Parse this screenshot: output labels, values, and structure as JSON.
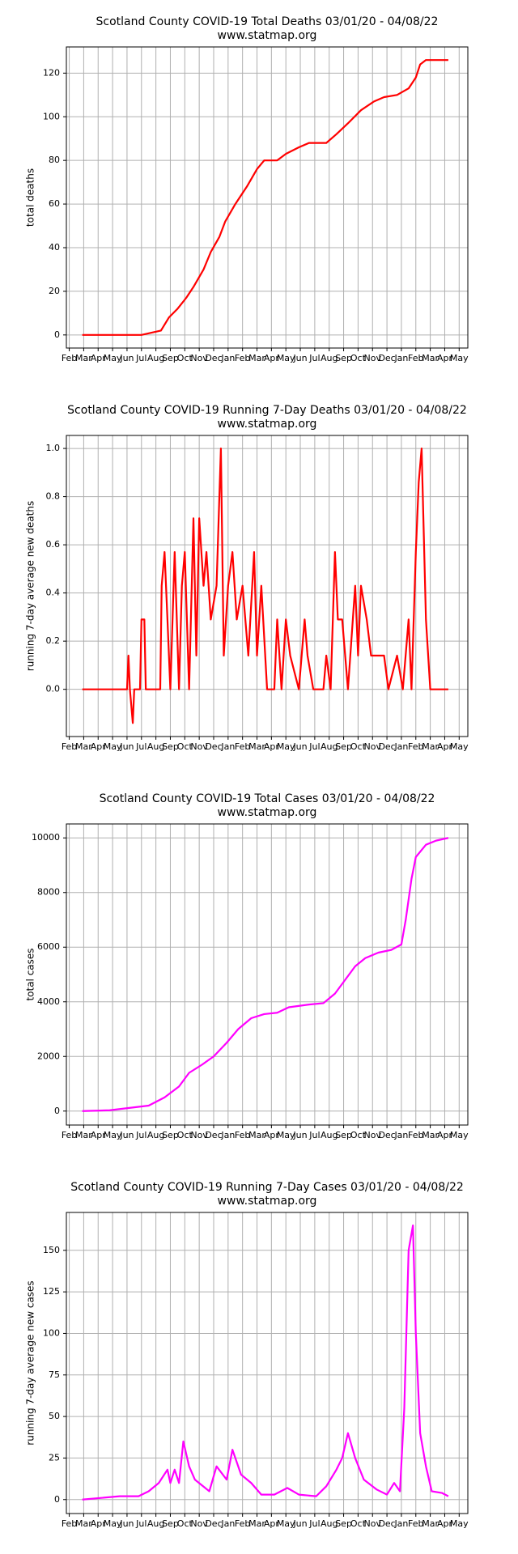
{
  "chart_data": [
    {
      "type": "line",
      "title": "Scotland County COVID-19 Total Deaths 03/01/20 - 04/08/22",
      "subtitle": "www.statmap.org",
      "y_label": "total deaths",
      "grid": true,
      "xlim": [
        -0.2,
        27.6
      ],
      "ylim": [
        -6,
        132
      ],
      "yticks": [
        0,
        20,
        40,
        60,
        80,
        100,
        120
      ],
      "xticks": [
        {
          "value": 0,
          "label": "Feb"
        },
        {
          "value": 1,
          "label": "Mar"
        },
        {
          "value": 2,
          "label": "Apr"
        },
        {
          "value": 3,
          "label": "May"
        },
        {
          "value": 4,
          "label": "Jun"
        },
        {
          "value": 5,
          "label": "Jul"
        },
        {
          "value": 6,
          "label": "Aug"
        },
        {
          "value": 7,
          "label": "Sep"
        },
        {
          "value": 8,
          "label": "Oct"
        },
        {
          "value": 9,
          "label": "Nov"
        },
        {
          "value": 10,
          "label": "Dec"
        },
        {
          "value": 11,
          "label": "Jan"
        },
        {
          "value": 12,
          "label": "Feb"
        },
        {
          "value": 13,
          "label": "Mar"
        },
        {
          "value": 14,
          "label": "Apr"
        },
        {
          "value": 15,
          "label": "May"
        },
        {
          "value": 16,
          "label": "Jun"
        },
        {
          "value": 17,
          "label": "Jul"
        },
        {
          "value": 18,
          "label": "Aug"
        },
        {
          "value": 19,
          "label": "Sep"
        },
        {
          "value": 20,
          "label": "Oct"
        },
        {
          "value": 21,
          "label": "Nov"
        },
        {
          "value": 22,
          "label": "Dec"
        },
        {
          "value": 23,
          "label": "Jan"
        },
        {
          "value": 24,
          "label": "Feb"
        },
        {
          "value": 25,
          "label": "Mar"
        },
        {
          "value": 26,
          "label": "Apr"
        },
        {
          "value": 27,
          "label": "May"
        }
      ],
      "series": [
        {
          "color": "#ff0000",
          "x": [
            0.9,
            5.0,
            6.35,
            6.9,
            7.5,
            8.1,
            8.6,
            9.3,
            9.8,
            10.4,
            10.8,
            11.5,
            12.3,
            13,
            13.5,
            14.4,
            15,
            15.9,
            16.6,
            17.8,
            18.5,
            19.3,
            20.2,
            21.1,
            21.8,
            22.7,
            23.5,
            24,
            24.3,
            24.7,
            26.25
          ],
          "values": [
            0,
            0,
            2,
            8,
            12,
            17,
            22,
            30,
            38,
            45,
            52,
            60,
            68,
            76,
            80,
            80,
            83,
            86,
            88,
            88,
            92,
            97,
            103,
            107,
            109,
            110,
            113,
            118,
            124,
            126,
            126
          ]
        }
      ]
    },
    {
      "type": "line",
      "title": "Scotland County COVID-19 Running 7-Day Deaths 03/01/20 - 04/08/22",
      "subtitle": "www.statmap.org",
      "y_label": "running 7-day average new deaths",
      "grid": true,
      "xlim": [
        -0.2,
        27.6
      ],
      "ylim": [
        -0.196,
        1.054
      ],
      "yticks": [
        0.0,
        0.2,
        0.4,
        0.6,
        0.8,
        1.0
      ],
      "ytick_labels_note": null,
      "xticks": [
        {
          "value": 0,
          "label": "Feb"
        },
        {
          "value": 1,
          "label": "Mar"
        },
        {
          "value": 2,
          "label": "Apr"
        },
        {
          "value": 3,
          "label": "May"
        },
        {
          "value": 4,
          "label": "Jun"
        },
        {
          "value": 5,
          "label": "Jul"
        },
        {
          "value": 6,
          "label": "Aug"
        },
        {
          "value": 7,
          "label": "Sep"
        },
        {
          "value": 8,
          "label": "Oct"
        },
        {
          "value": 9,
          "label": "Nov"
        },
        {
          "value": 10,
          "label": "Dec"
        },
        {
          "value": 11,
          "label": "Jan"
        },
        {
          "value": 12,
          "label": "Feb"
        },
        {
          "value": 13,
          "label": "Mar"
        },
        {
          "value": 14,
          "label": "Apr"
        },
        {
          "value": 15,
          "label": "May"
        },
        {
          "value": 16,
          "label": "Jun"
        },
        {
          "value": 17,
          "label": "Jul"
        },
        {
          "value": 18,
          "label": "Aug"
        },
        {
          "value": 19,
          "label": "Sep"
        },
        {
          "value": 20,
          "label": "Oct"
        },
        {
          "value": 21,
          "label": "Nov"
        },
        {
          "value": 22,
          "label": "Dec"
        },
        {
          "value": 23,
          "label": "Jan"
        },
        {
          "value": 24,
          "label": "Feb"
        },
        {
          "value": 25,
          "label": "Mar"
        },
        {
          "value": 26,
          "label": "Apr"
        },
        {
          "value": 27,
          "label": "May"
        }
      ],
      "series": [
        {
          "color": "#ff0000",
          "x": [
            0.9,
            4.0,
            4.1,
            4.2,
            4.4,
            4.5,
            4.9,
            5.0,
            5.2,
            5.3,
            6.3,
            6.4,
            6.6,
            6.8,
            7.0,
            7.3,
            7.6,
            7.8,
            8.0,
            8.3,
            8.6,
            8.8,
            9.0,
            9.3,
            9.5,
            9.8,
            10.2,
            10.5,
            10.7,
            11.0,
            11.3,
            11.6,
            12.0,
            12.4,
            12.8,
            13.0,
            13.3,
            13.7,
            14.2,
            14.4,
            14.7,
            15.0,
            15.3,
            15.9,
            16.3,
            16.5,
            16.9,
            17.6,
            17.8,
            18.1,
            18.4,
            18.6,
            18.9,
            19.3,
            19.8,
            20.0,
            20.2,
            20.6,
            20.9,
            21.8,
            22.1,
            22.7,
            23.1,
            23.5,
            23.7,
            24.0,
            24.2,
            24.4,
            24.7,
            25.0,
            26.25
          ],
          "values": [
            0,
            0,
            0.14,
            0,
            -0.14,
            0,
            0,
            0.29,
            0.29,
            0,
            0,
            0.43,
            0.57,
            0.29,
            0,
            0.57,
            0,
            0.43,
            0.57,
            0,
            0.71,
            0.14,
            0.71,
            0.43,
            0.57,
            0.29,
            0.43,
            1.0,
            0.14,
            0.43,
            0.57,
            0.29,
            0.43,
            0.14,
            0.57,
            0.14,
            0.43,
            0,
            0,
            0.29,
            0,
            0.29,
            0.14,
            0,
            0.29,
            0.14,
            0,
            0,
            0.14,
            0,
            0.57,
            0.29,
            0.29,
            0,
            0.43,
            0.14,
            0.43,
            0.29,
            0.14,
            0.14,
            0,
            0.14,
            0,
            0.29,
            0,
            0.57,
            0.86,
            1.0,
            0.29,
            0,
            0
          ]
        }
      ]
    },
    {
      "type": "line",
      "title": "Scotland County COVID-19 Total Cases 03/01/20 - 04/08/22",
      "subtitle": "www.statmap.org",
      "y_label": "total cases",
      "grid": true,
      "xlim": [
        -0.2,
        27.6
      ],
      "ylim": [
        -511,
        10511
      ],
      "yticks": [
        0,
        2000,
        4000,
        6000,
        8000,
        10000
      ],
      "xticks": [
        {
          "value": 0,
          "label": "Feb"
        },
        {
          "value": 1,
          "label": "Mar"
        },
        {
          "value": 2,
          "label": "Apr"
        },
        {
          "value": 3,
          "label": "May"
        },
        {
          "value": 4,
          "label": "Jun"
        },
        {
          "value": 5,
          "label": "Jul"
        },
        {
          "value": 6,
          "label": "Aug"
        },
        {
          "value": 7,
          "label": "Sep"
        },
        {
          "value": 8,
          "label": "Oct"
        },
        {
          "value": 9,
          "label": "Nov"
        },
        {
          "value": 10,
          "label": "Dec"
        },
        {
          "value": 11,
          "label": "Jan"
        },
        {
          "value": 12,
          "label": "Feb"
        },
        {
          "value": 13,
          "label": "Mar"
        },
        {
          "value": 14,
          "label": "Apr"
        },
        {
          "value": 15,
          "label": "May"
        },
        {
          "value": 16,
          "label": "Jun"
        },
        {
          "value": 17,
          "label": "Jul"
        },
        {
          "value": 18,
          "label": "Aug"
        },
        {
          "value": 19,
          "label": "Sep"
        },
        {
          "value": 20,
          "label": "Oct"
        },
        {
          "value": 21,
          "label": "Nov"
        },
        {
          "value": 22,
          "label": "Dec"
        },
        {
          "value": 23,
          "label": "Jan"
        },
        {
          "value": 24,
          "label": "Feb"
        },
        {
          "value": 25,
          "label": "Mar"
        },
        {
          "value": 26,
          "label": "Apr"
        },
        {
          "value": 27,
          "label": "May"
        }
      ],
      "series": [
        {
          "color": "#ff00ff",
          "x": [
            0.9,
            2.8,
            5.5,
            6.6,
            7.6,
            8.3,
            9.2,
            10,
            10.9,
            11.7,
            12.6,
            13.5,
            14.4,
            15.2,
            16.6,
            17.6,
            18.4,
            19.1,
            19.8,
            20.5,
            21.4,
            22.3,
            23,
            23.3,
            23.7,
            24,
            24.7,
            25.4,
            26.25
          ],
          "values": [
            0,
            30,
            200,
            500,
            900,
            1400,
            1700,
            2000,
            2500,
            3000,
            3400,
            3550,
            3600,
            3800,
            3900,
            3950,
            4300,
            4800,
            5300,
            5600,
            5800,
            5900,
            6100,
            7000,
            8500,
            9300,
            9750,
            9900,
            10000
          ]
        }
      ]
    },
    {
      "type": "line",
      "title": "Scotland County COVID-19 Running 7-Day Cases 03/01/20 - 04/08/22",
      "subtitle": "www.statmap.org",
      "y_label": "running 7-day average new cases",
      "grid": true,
      "xlim": [
        -0.2,
        27.6
      ],
      "ylim": [
        -8.4,
        172.8
      ],
      "yticks": [
        0,
        25,
        50,
        75,
        100,
        125,
        150
      ],
      "xticks": [
        {
          "value": 0,
          "label": "Feb"
        },
        {
          "value": 1,
          "label": "Mar"
        },
        {
          "value": 2,
          "label": "Apr"
        },
        {
          "value": 3,
          "label": "May"
        },
        {
          "value": 4,
          "label": "Jun"
        },
        {
          "value": 5,
          "label": "Jul"
        },
        {
          "value": 6,
          "label": "Aug"
        },
        {
          "value": 7,
          "label": "Sep"
        },
        {
          "value": 8,
          "label": "Oct"
        },
        {
          "value": 9,
          "label": "Nov"
        },
        {
          "value": 10,
          "label": "Dec"
        },
        {
          "value": 11,
          "label": "Jan"
        },
        {
          "value": 12,
          "label": "Feb"
        },
        {
          "value": 13,
          "label": "Mar"
        },
        {
          "value": 14,
          "label": "Apr"
        },
        {
          "value": 15,
          "label": "May"
        },
        {
          "value": 16,
          "label": "Jun"
        },
        {
          "value": 17,
          "label": "Jul"
        },
        {
          "value": 18,
          "label": "Aug"
        },
        {
          "value": 19,
          "label": "Sep"
        },
        {
          "value": 20,
          "label": "Oct"
        },
        {
          "value": 21,
          "label": "Nov"
        },
        {
          "value": 22,
          "label": "Dec"
        },
        {
          "value": 23,
          "label": "Jan"
        },
        {
          "value": 24,
          "label": "Feb"
        },
        {
          "value": 25,
          "label": "Mar"
        },
        {
          "value": 26,
          "label": "Apr"
        },
        {
          "value": 27,
          "label": "May"
        }
      ],
      "series": [
        {
          "color": "#ff00ff",
          "x": [
            0.9,
            3.5,
            4.8,
            5.5,
            6.2,
            6.8,
            7,
            7.3,
            7.6,
            7.9,
            8.3,
            8.7,
            9.7,
            10.2,
            10.9,
            11.3,
            11.9,
            12.6,
            13.3,
            14.2,
            15.1,
            15.9,
            17.1,
            17.8,
            18.5,
            18.9,
            19.3,
            19.8,
            20.4,
            21.3,
            22,
            22.5,
            22.9,
            23.2,
            23.5,
            23.8,
            24,
            24.3,
            24.7,
            25.1,
            25.8,
            26.25
          ],
          "values": [
            0,
            2,
            2,
            5,
            10,
            18,
            10,
            18,
            10,
            35,
            20,
            12,
            5,
            20,
            12,
            30,
            15,
            10,
            3,
            3,
            7,
            3,
            2,
            8,
            18,
            25,
            40,
            25,
            12,
            6,
            3,
            10,
            5,
            55,
            150,
            165,
            100,
            40,
            20,
            5,
            4,
            2
          ]
        }
      ]
    }
  ]
}
